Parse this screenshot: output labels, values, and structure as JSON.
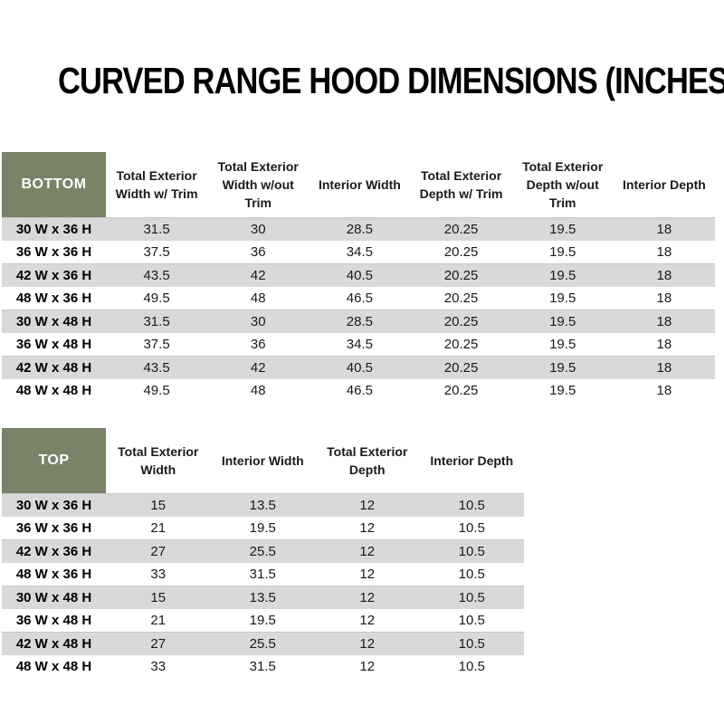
{
  "title": "CURVED RANGE HOOD DIMENSIONS (INCHES)",
  "colors": {
    "header_green": "#788368",
    "row_gray": "#d9d9d9",
    "row_white": "#ffffff",
    "header_label_text": "#ffffff",
    "body_text": "#1a1a1a"
  },
  "bottom_table": {
    "label": "BOTTOM",
    "columns": [
      "Total Exterior Width w/ Trim",
      "Total Exterior Width w/out Trim",
      "Interior Width",
      "Total Exterior Depth w/ Trim",
      "Total Exterior Depth w/out Trim",
      "Interior Depth"
    ],
    "rows": [
      {
        "size": "30 W x 36 H",
        "values": [
          "31.5",
          "30",
          "28.5",
          "20.25",
          "19.5",
          "18"
        ]
      },
      {
        "size": "36 W x 36 H",
        "values": [
          "37.5",
          "36",
          "34.5",
          "20.25",
          "19.5",
          "18"
        ]
      },
      {
        "size": "42 W x 36 H",
        "values": [
          "43.5",
          "42",
          "40.5",
          "20.25",
          "19.5",
          "18"
        ]
      },
      {
        "size": "48 W x 36 H",
        "values": [
          "49.5",
          "48",
          "46.5",
          "20.25",
          "19.5",
          "18"
        ]
      },
      {
        "size": "30 W x 48 H",
        "values": [
          "31.5",
          "30",
          "28.5",
          "20.25",
          "19.5",
          "18"
        ]
      },
      {
        "size": "36 W x 48 H",
        "values": [
          "37.5",
          "36",
          "34.5",
          "20.25",
          "19.5",
          "18"
        ]
      },
      {
        "size": "42 W x 48 H",
        "values": [
          "43.5",
          "42",
          "40.5",
          "20.25",
          "19.5",
          "18"
        ]
      },
      {
        "size": "48 W x 48 H",
        "values": [
          "49.5",
          "48",
          "46.5",
          "20.25",
          "19.5",
          "18"
        ]
      }
    ]
  },
  "top_table": {
    "label": "TOP",
    "columns": [
      "Total Exterior Width",
      "Interior Width",
      "Total Exterior Depth",
      "Interior Depth"
    ],
    "rows": [
      {
        "size": "30 W x 36 H",
        "values": [
          "15",
          "13.5",
          "12",
          "10.5"
        ]
      },
      {
        "size": "36 W x 36 H",
        "values": [
          "21",
          "19.5",
          "12",
          "10.5"
        ]
      },
      {
        "size": "42 W x 36 H",
        "values": [
          "27",
          "25.5",
          "12",
          "10.5"
        ]
      },
      {
        "size": "48 W x 36 H",
        "values": [
          "33",
          "31.5",
          "12",
          "10.5"
        ]
      },
      {
        "size": "30 W x 48 H",
        "values": [
          "15",
          "13.5",
          "12",
          "10.5"
        ]
      },
      {
        "size": "36 W x 48 H",
        "values": [
          "21",
          "19.5",
          "12",
          "10.5"
        ]
      },
      {
        "size": "42 W x 48 H",
        "values": [
          "27",
          "25.5",
          "12",
          "10.5"
        ]
      },
      {
        "size": "48 W x 48 H",
        "values": [
          "33",
          "31.5",
          "12",
          "10.5"
        ]
      }
    ]
  }
}
